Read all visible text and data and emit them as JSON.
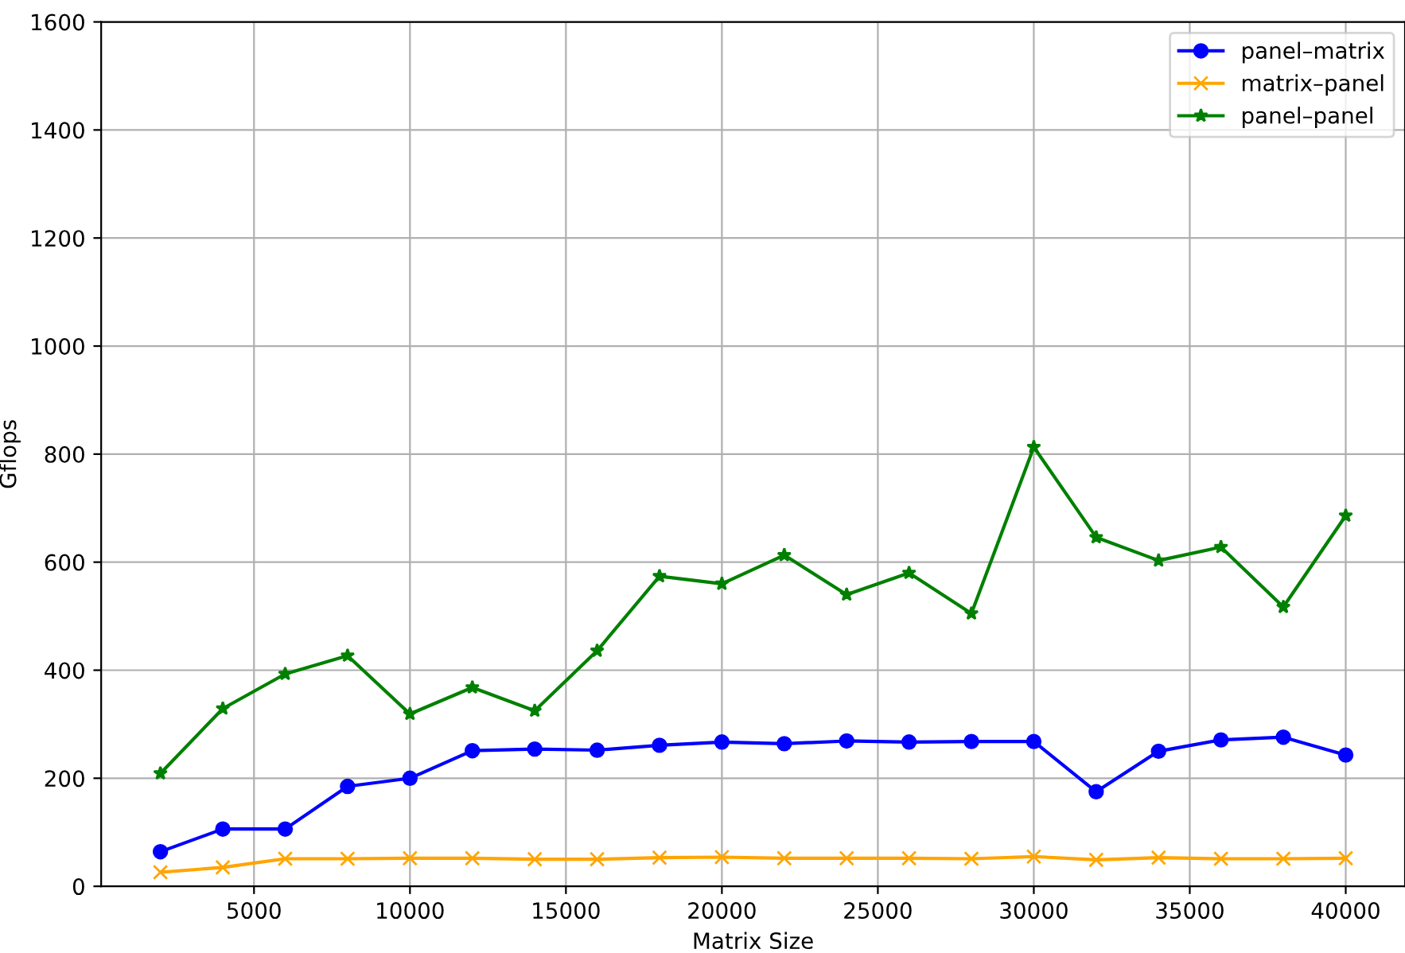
{
  "chart_data": {
    "type": "line",
    "xlabel": "Matrix Size",
    "ylabel": "Gflops",
    "x": [
      2000,
      4000,
      6000,
      8000,
      10000,
      12000,
      14000,
      16000,
      18000,
      20000,
      22000,
      24000,
      26000,
      28000,
      30000,
      32000,
      34000,
      36000,
      38000,
      40000
    ],
    "series": [
      {
        "name": "panel–matrix",
        "color": "#0000ff",
        "marker": "circle",
        "values": [
          64,
          106,
          106,
          185,
          200,
          251,
          254,
          252,
          261,
          267,
          264,
          269,
          267,
          268,
          268,
          175,
          250,
          271,
          276,
          243
        ]
      },
      {
        "name": "matrix–panel",
        "color": "#ffa500",
        "marker": "cross",
        "values": [
          26,
          35,
          51,
          51,
          52,
          52,
          50,
          50,
          53,
          54,
          52,
          52,
          52,
          51,
          55,
          49,
          53,
          51,
          51,
          52
        ]
      },
      {
        "name": "panel–panel",
        "color": "#008000",
        "marker": "star",
        "values": [
          209,
          329,
          393,
          427,
          319,
          368,
          325,
          436,
          574,
          560,
          613,
          540,
          580,
          505,
          813,
          646,
          603,
          628,
          517,
          686
        ]
      }
    ],
    "xlim": [
      100,
      41900
    ],
    "xticks": [
      5000,
      10000,
      15000,
      20000,
      25000,
      30000,
      35000,
      40000
    ],
    "ylim": [
      0,
      1600
    ],
    "yticks": [
      0,
      200,
      400,
      600,
      800,
      1000,
      1200,
      1400,
      1600
    ],
    "grid": true,
    "legend": "top right"
  }
}
